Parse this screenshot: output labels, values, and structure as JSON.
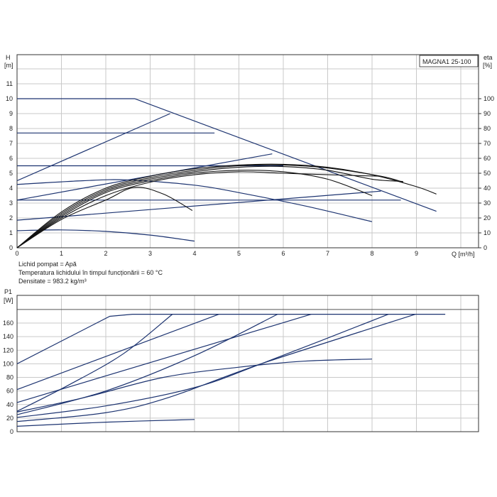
{
  "chart_data": [
    {
      "type": "line",
      "title": "MAGNA1 25-100",
      "xlabel": "Q [m³/h]",
      "ylabel_lines": [
        "H",
        "[m]"
      ],
      "y2label_lines": [
        "eta",
        "[%]"
      ],
      "xlim": [
        0,
        10.4
      ],
      "ylim": [
        0,
        13
      ],
      "y2lim": [
        0,
        130
      ],
      "xticks": [
        "0",
        "1",
        "2",
        "3",
        "4",
        "5",
        "6",
        "7",
        "8",
        "9"
      ],
      "yticks": [
        "0",
        "1",
        "2",
        "3",
        "4",
        "5",
        "6",
        "7",
        "8",
        "9",
        "10",
        "11"
      ],
      "y2ticks": [
        "0",
        "10",
        "20",
        "30",
        "40",
        "50",
        "60",
        "70",
        "80",
        "90",
        "100"
      ],
      "grid": true,
      "head_series": [
        {
          "name": "max-curve",
          "smooth": false,
          "points": [
            [
              0,
              10
            ],
            [
              2.65,
              10
            ],
            [
              9.45,
              2.45
            ]
          ]
        },
        {
          "name": "proportional-pressure-1",
          "smooth": false,
          "points": [
            [
              0,
              4.5
            ],
            [
              3.45,
              9
            ]
          ]
        },
        {
          "name": "proportional-pressure-2",
          "smooth": false,
          "points": [
            [
              0,
              3.2
            ],
            [
              5.75,
              6.3
            ]
          ]
        },
        {
          "name": "proportional-pressure-3",
          "smooth": false,
          "points": [
            [
              0,
              1.85
            ],
            [
              8.2,
              3.8
            ]
          ]
        },
        {
          "name": "constant-pressure-1",
          "smooth": false,
          "points": [
            [
              0,
              7.7
            ],
            [
              4.45,
              7.7
            ]
          ]
        },
        {
          "name": "constant-pressure-2",
          "smooth": false,
          "points": [
            [
              0,
              5.5
            ],
            [
              6.0,
              5.5
            ]
          ]
        },
        {
          "name": "constant-pressure-3",
          "smooth": false,
          "points": [
            [
              0,
              3.2
            ],
            [
              8.65,
              3.2
            ]
          ]
        },
        {
          "name": "fixed-speed-1",
          "smooth": true,
          "points": [
            [
              0,
              4.25
            ],
            [
              1.5,
              4.5
            ],
            [
              2.5,
              4.55
            ],
            [
              4,
              4.2
            ],
            [
              5,
              3.7
            ],
            [
              6.5,
              2.8
            ],
            [
              8,
              1.75
            ]
          ]
        },
        {
          "name": "fixed-speed-2",
          "smooth": true,
          "points": [
            [
              0,
              1.15
            ],
            [
              1,
              1.2
            ],
            [
              2,
              1.1
            ],
            [
              3,
              0.85
            ],
            [
              4,
              0.45
            ]
          ]
        }
      ],
      "eta_series": [
        {
          "name": "eta-1",
          "points": [
            [
              0,
              0
            ],
            [
              1,
              24
            ],
            [
              2,
              40
            ],
            [
              3,
              48
            ],
            [
              4,
              53
            ],
            [
              5,
              55.5
            ],
            [
              6,
              56
            ],
            [
              7,
              54
            ],
            [
              8,
              49
            ],
            [
              9,
              41
            ],
            [
              9.45,
              36
            ]
          ]
        },
        {
          "name": "eta-2",
          "points": [
            [
              0,
              0
            ],
            [
              1,
              23
            ],
            [
              2,
              39
            ],
            [
              3,
              47
            ],
            [
              4,
              52
            ],
            [
              5,
              55
            ],
            [
              6,
              55.5
            ],
            [
              7,
              53.5
            ],
            [
              8.2,
              48
            ],
            [
              8.7,
              44
            ]
          ]
        },
        {
          "name": "eta-3",
          "points": [
            [
              0,
              0
            ],
            [
              1,
              22
            ],
            [
              2,
              38
            ],
            [
              3,
              46
            ],
            [
              4,
              51
            ],
            [
              5,
              54
            ],
            [
              6,
              54.5
            ],
            [
              7,
              52
            ],
            [
              8,
              46
            ],
            [
              8.7,
              44.5
            ]
          ]
        },
        {
          "name": "eta-4",
          "points": [
            [
              0,
              0
            ],
            [
              1,
              21
            ],
            [
              2,
              37
            ],
            [
              3,
              45
            ],
            [
              4,
              50
            ],
            [
              5,
              52
            ],
            [
              6,
              51
            ],
            [
              7,
              46
            ],
            [
              8,
              35
            ]
          ]
        },
        {
          "name": "eta-5",
          "points": [
            [
              0,
              0
            ],
            [
              1,
              20
            ],
            [
              2,
              35
            ],
            [
              3,
              44
            ],
            [
              4,
              49
            ],
            [
              5,
              51
            ],
            [
              6,
              50
            ],
            [
              7,
              49
            ],
            [
              8.2,
              48
            ]
          ]
        },
        {
          "name": "eta-6",
          "points": [
            [
              0,
              0
            ],
            [
              1,
              19
            ],
            [
              2,
              32
            ],
            [
              2.65,
              40.5
            ],
            [
              3.3,
              36
            ],
            [
              3.95,
              25
            ]
          ]
        }
      ]
    },
    {
      "type": "line",
      "ylabel_lines": [
        "P1",
        "[W]"
      ],
      "xlim": [
        0,
        10.4
      ],
      "ylim": [
        0,
        200
      ],
      "yticks": [
        "0",
        "20",
        "40",
        "60",
        "80",
        "100",
        "120",
        "140",
        "160"
      ],
      "grid": true,
      "series": [
        {
          "name": "p1-max",
          "smooth": false,
          "points": [
            [
              0,
              100
            ],
            [
              2.09,
              170
            ],
            [
              2.6,
              173
            ],
            [
              9.65,
              173
            ]
          ]
        },
        {
          "name": "p1-line-2",
          "smooth": false,
          "points": [
            [
              0,
              62
            ],
            [
              4.55,
              173
            ]
          ]
        },
        {
          "name": "p1-line-3",
          "smooth": true,
          "points": [
            [
              0,
              30
            ],
            [
              1.2,
              70
            ],
            [
              2.4,
              115
            ],
            [
              3.5,
              173
            ]
          ]
        },
        {
          "name": "p1-line-4",
          "smooth": false,
          "points": [
            [
              0,
              43
            ],
            [
              6.63,
              173
            ]
          ]
        },
        {
          "name": "p1-line-5",
          "smooth": true,
          "points": [
            [
              0,
              25
            ],
            [
              2,
              60
            ],
            [
              4,
              112
            ],
            [
              5.87,
              173
            ]
          ]
        },
        {
          "name": "p1-line-6",
          "smooth": true,
          "points": [
            [
              0,
              29
            ],
            [
              1.5,
              50
            ],
            [
              3.3,
              80
            ],
            [
              5,
              95
            ],
            [
              6.5,
              104
            ],
            [
              8.0,
              107
            ]
          ]
        },
        {
          "name": "p1-line-7",
          "smooth": true,
          "points": [
            [
              0,
              21
            ],
            [
              2,
              38
            ],
            [
              4,
              65
            ],
            [
              5.5,
              100
            ],
            [
              8.37,
              173
            ]
          ]
        },
        {
          "name": "p1-line-8",
          "smooth": true,
          "points": [
            [
              0,
              15
            ],
            [
              2,
              28
            ],
            [
              3.4,
              50
            ],
            [
              5.5,
              100
            ],
            [
              8.98,
              173
            ]
          ]
        },
        {
          "name": "p1-line-9",
          "smooth": true,
          "points": [
            [
              0,
              8
            ],
            [
              2,
              14
            ],
            [
              4,
              18
            ]
          ]
        }
      ]
    }
  ],
  "notes": {
    "liquid": "Lichid pompat = Apă",
    "temperature": "Temperatura lichidului în timpul funcționării = 60 °C",
    "density": "Densitate = 983.2 kg/m³"
  },
  "colors": {
    "blue_line": "#1c3370",
    "black_line": "#111111",
    "grid": "#c9c9c9"
  }
}
